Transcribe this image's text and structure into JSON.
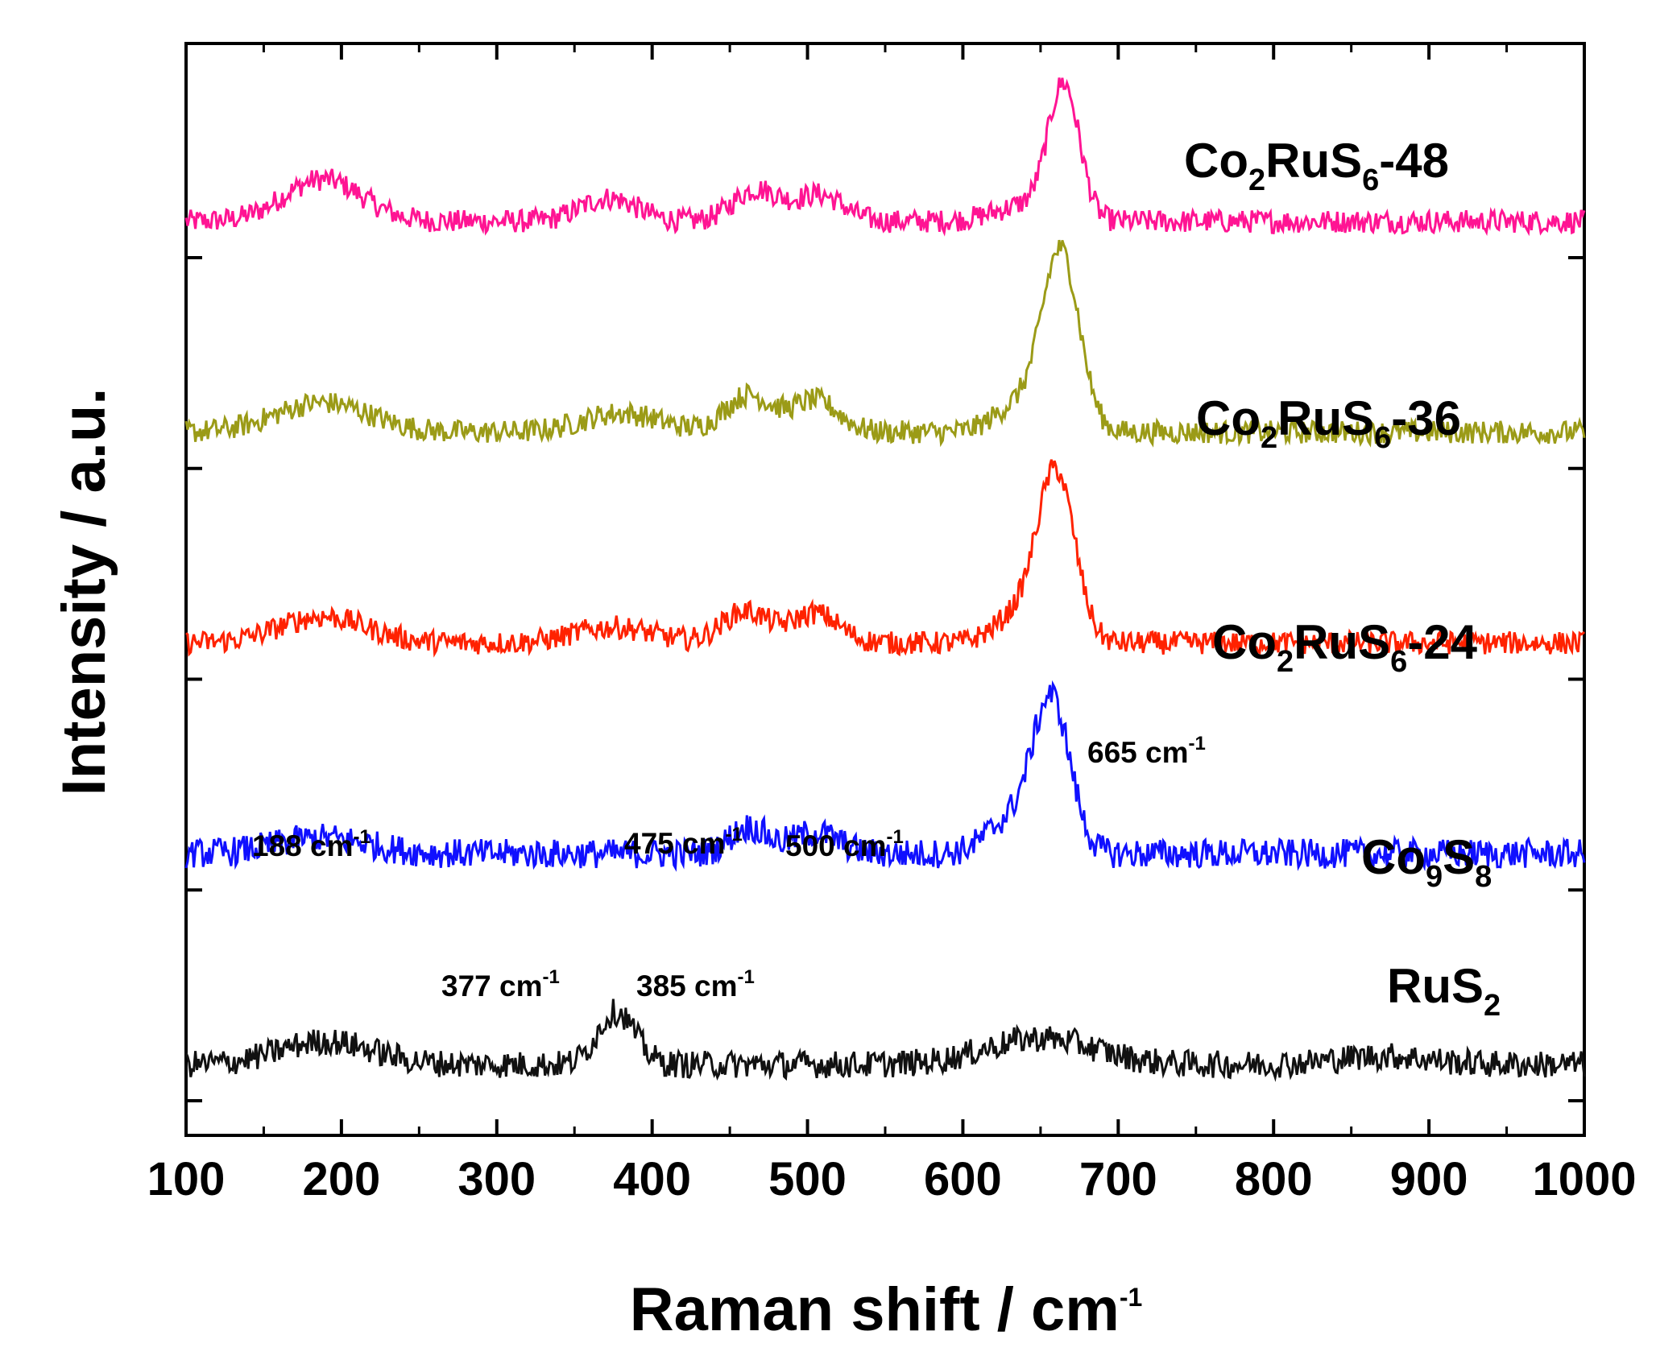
{
  "chart_data": {
    "type": "line",
    "xlabel": "Raman shift / cm",
    "xlabel_sup": "-1",
    "ylabel": "Intensity / a.u.",
    "xlim": [
      100,
      1000
    ],
    "ylim": [
      0,
      1
    ],
    "x_ticks": [
      "100",
      "200",
      "300",
      "400",
      "500",
      "600",
      "700",
      "800",
      "900",
      "1000"
    ],
    "y_ticks_labeled": false,
    "grid": false,
    "series": [
      {
        "name_parts": [
          [
            "Co",
            "n"
          ],
          [
            "2",
            "sub"
          ],
          [
            "RuS",
            "n"
          ],
          [
            "6",
            "sub"
          ],
          [
            "-48",
            "n"
          ]
        ],
        "color": "#ff1493",
        "baseline": 0.8,
        "noise": 0.011,
        "peaks": [
          [
            188,
            0.04,
            25
          ],
          [
            372,
            0.022,
            18
          ],
          [
            467,
            0.03,
            15
          ],
          [
            508,
            0.025,
            15
          ],
          [
            665,
            0.125,
            10
          ],
          [
            640,
            0.015,
            20
          ]
        ]
      },
      {
        "name_parts": [
          [
            "Co",
            "n"
          ],
          [
            "2",
            "sub"
          ],
          [
            "RuS",
            "n"
          ],
          [
            "6",
            "sub"
          ],
          [
            "-36",
            "n"
          ]
        ],
        "color": "#9b9b17",
        "baseline": 0.6,
        "noise": 0.011,
        "peaks": [
          [
            188,
            0.028,
            30
          ],
          [
            380,
            0.018,
            25
          ],
          [
            462,
            0.035,
            15
          ],
          [
            505,
            0.03,
            15
          ],
          [
            663,
            0.17,
            12
          ],
          [
            635,
            0.025,
            15
          ]
        ]
      },
      {
        "name_parts": [
          [
            "Co",
            "n"
          ],
          [
            "2",
            "sub"
          ],
          [
            "RuS",
            "n"
          ],
          [
            "6",
            "sub"
          ],
          [
            "-24",
            "n"
          ]
        ],
        "color": "#ff2200",
        "baseline": 0.4,
        "noise": 0.011,
        "peaks": [
          [
            188,
            0.025,
            28
          ],
          [
            375,
            0.015,
            25
          ],
          [
            460,
            0.03,
            15
          ],
          [
            505,
            0.028,
            15
          ],
          [
            660,
            0.16,
            12
          ],
          [
            635,
            0.025,
            15
          ]
        ]
      },
      {
        "name_parts": [
          [
            "Co",
            "n"
          ],
          [
            "9",
            "sub"
          ],
          [
            "S",
            "n"
          ],
          [
            "8",
            "sub"
          ]
        ],
        "color": "#1010ff",
        "baseline": 0.2,
        "noise": 0.014,
        "peaks": [
          [
            188,
            0.015,
            30
          ],
          [
            462,
            0.025,
            12
          ],
          [
            505,
            0.02,
            15
          ],
          [
            657,
            0.145,
            12
          ],
          [
            630,
            0.03,
            15
          ]
        ]
      },
      {
        "name_parts": [
          [
            "RuS",
            "n"
          ],
          [
            "2",
            "sub"
          ]
        ],
        "color": "#111111",
        "baseline": 0.0,
        "noise": 0.013,
        "peaks": [
          [
            190,
            0.022,
            30
          ],
          [
            377,
            0.05,
            12
          ],
          [
            650,
            0.025,
            35
          ],
          [
            870,
            0.008,
            30
          ]
        ]
      }
    ],
    "annotations": [
      {
        "text": "665 cm",
        "sup": "-1",
        "x": 665
      },
      {
        "text": "188 cm",
        "sup": "-1",
        "x": 188
      },
      {
        "text": "475 cm",
        "sup": "-1",
        "x": 475
      },
      {
        "text": "500 cm",
        "sup": "-1",
        "x": 500
      },
      {
        "text": "377 cm",
        "sup": "-1",
        "x": 377
      },
      {
        "text": "385 cm",
        "sup": "-1",
        "x": 385
      }
    ]
  }
}
